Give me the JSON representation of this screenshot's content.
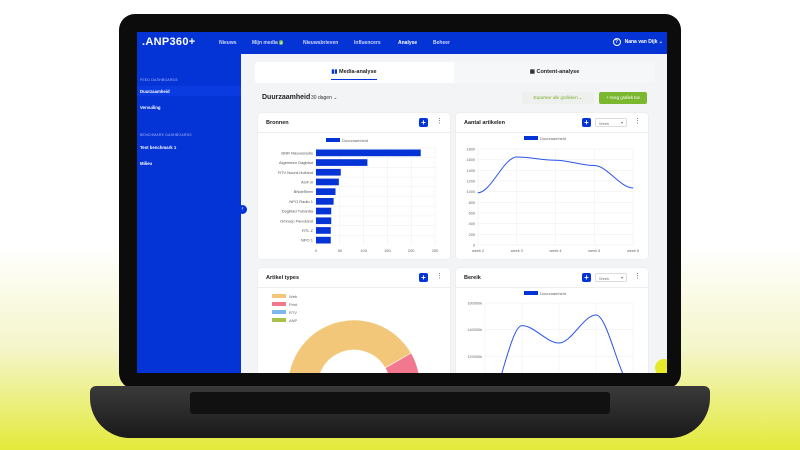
{
  "topbar": {
    "logo": ".ANP360+",
    "nav": [
      "Nieuws",
      "Mijn media",
      "Nieuwsbrieven",
      "Influencers",
      "Analyse",
      "Beheer"
    ],
    "mijn_media_badge": "8",
    "user": "Nana van Dijk",
    "help_icon": "?"
  },
  "sidebar": {
    "feed_heading": "FEED DASHBOARDS",
    "feed_items": [
      "Duurzaamheid",
      "Vervuiling"
    ],
    "bench_heading": "BENCHMARK DASHBOARDS",
    "bench_items": [
      "Test benchmark 1",
      "Milieu"
    ]
  },
  "tabs": [
    "Media-analyse",
    "Content-analyse"
  ],
  "header": {
    "title": "Duurzaamheid",
    "range": "30 dagen",
    "export": "Exporteer alle grafieken",
    "add": "+ Voeg grafiek toe"
  },
  "colors": {
    "brand": "#0433d6",
    "green": "#7cb82f"
  },
  "cards": {
    "bronnen": "Bronnen",
    "aantal": "Aantal artikelen",
    "types": "Artikel types",
    "bereik": "Bereik",
    "week_select": "Week"
  },
  "chart_data": [
    {
      "type": "bar",
      "orientation": "horizontal",
      "title": "Bronnen",
      "legend": "Duurzaamheid",
      "categories": [
        "BNR Nieuwsradio",
        "Algemeen Dagblad",
        "RTV Noord-Holland",
        "AGF.nl",
        "BNdeStem",
        "NPO Radio 1",
        "Dagblad Tubantia",
        "Omroep Flevoland",
        "RTL Z",
        "NPO 1"
      ],
      "values": [
        220,
        108,
        52,
        48,
        41,
        37,
        32,
        32,
        31,
        31
      ],
      "xlim": [
        0,
        250
      ],
      "xticks": [
        "0",
        "50",
        "100",
        "150",
        "200",
        "250"
      ]
    },
    {
      "type": "line",
      "title": "Aantal artikelen",
      "legend": "Duurzaamheid",
      "x": [
        "week 2",
        "week 3",
        "week 4",
        "week 5",
        "week 6"
      ],
      "values": [
        980,
        1650,
        1590,
        1490,
        1070
      ],
      "ylim": [
        0,
        1800
      ],
      "yticks": [
        "0",
        "200",
        "400",
        "600",
        "800",
        "1000",
        "1200",
        "1400",
        "1600",
        "1800"
      ]
    },
    {
      "type": "pie",
      "title": "Artikel types",
      "categories": [
        "Web",
        "Print",
        "RTV",
        "ANP"
      ],
      "values": [
        72,
        14,
        8,
        6
      ],
      "colors": [
        "#f2c77a",
        "#f2788f",
        "#7bb8f0",
        "#a9c04a"
      ]
    },
    {
      "type": "line",
      "title": "Bereik",
      "legend": "Duurzaamheid",
      "x": [
        "week 2",
        "week 3",
        "week 4",
        "week 5",
        "week 6"
      ],
      "values": [
        80000,
        143000,
        130000,
        151000,
        97000
      ],
      "ylim": [
        40000,
        160000
      ],
      "yticks": [
        "60000k",
        "80000k",
        "100000k",
        "120000k",
        "140000k",
        "160000k"
      ]
    }
  ]
}
